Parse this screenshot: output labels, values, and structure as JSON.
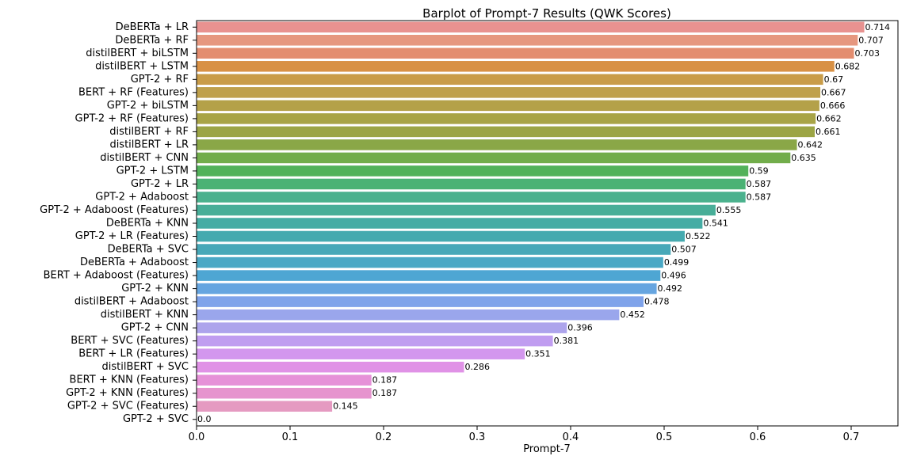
{
  "chart_data": {
    "type": "bar",
    "orientation": "horizontal",
    "title": "Barplot of Prompt-7 Results (QWK Scores)",
    "xlabel": "Prompt-7",
    "ylabel": "",
    "xlim": [
      0.0,
      0.75
    ],
    "xticks": [
      "0.0",
      "0.1",
      "0.2",
      "0.3",
      "0.4",
      "0.5",
      "0.6",
      "0.7"
    ],
    "grid": false,
    "categories": [
      "DeBERTa + LR",
      "DeBERTa + RF",
      "distilBERT + biLSTM",
      "distilBERT + LSTM",
      "GPT-2 + RF",
      "BERT + RF (Features)",
      "GPT-2 + biLSTM",
      "GPT-2 + RF (Features)",
      "distilBERT + RF",
      "distilBERT + LR",
      "distilBERT + CNN",
      "GPT-2 + LSTM",
      "GPT-2 + LR",
      "GPT-2 + Adaboost",
      "GPT-2 + Adaboost (Features)",
      "DeBERTa + KNN",
      "GPT-2 + LR (Features)",
      "DeBERTa + SVC",
      "DeBERTa + Adaboost",
      "BERT + Adaboost (Features)",
      "GPT-2 + KNN",
      "distilBERT + Adaboost",
      "distilBERT + KNN",
      "GPT-2 + CNN",
      "BERT + SVC (Features)",
      "BERT + LR (Features)",
      "distilBERT + SVC",
      "BERT + KNN (Features)",
      "GPT-2 + KNN (Features)",
      "GPT-2 + SVC (Features)",
      "GPT-2 + SVC"
    ],
    "values": [
      0.714,
      0.707,
      0.703,
      0.682,
      0.67,
      0.667,
      0.666,
      0.662,
      0.661,
      0.642,
      0.635,
      0.59,
      0.587,
      0.587,
      0.555,
      0.541,
      0.522,
      0.507,
      0.499,
      0.496,
      0.492,
      0.478,
      0.452,
      0.396,
      0.381,
      0.351,
      0.286,
      0.187,
      0.187,
      0.145,
      0.0
    ],
    "value_labels": [
      "0.714",
      "0.707",
      "0.703",
      "0.682",
      "0.67",
      "0.667",
      "0.666",
      "0.662",
      "0.661",
      "0.642",
      "0.635",
      "0.59",
      "0.587",
      "0.587",
      "0.555",
      "0.541",
      "0.522",
      "0.507",
      "0.499",
      "0.496",
      "0.492",
      "0.478",
      "0.452",
      "0.396",
      "0.381",
      "0.351",
      "0.286",
      "0.187",
      "0.187",
      "0.145",
      "0.0"
    ],
    "colors": [
      "#e89290",
      "#e6977f",
      "#e38d6f",
      "#d89145",
      "#c99c48",
      "#bfa04b",
      "#b4a149",
      "#a8a446",
      "#9ca545",
      "#8aa747",
      "#72ad4b",
      "#52b25a",
      "#4bb274",
      "#4bb18d",
      "#48ae98",
      "#45aca4",
      "#45aaaf",
      "#47a8b8",
      "#4aa8c5",
      "#4ea6d3",
      "#66a5e0",
      "#7fa3ea",
      "#9aa6ec",
      "#ada4ec",
      "#c09df0",
      "#d397ee",
      "#e092e6",
      "#e691d8",
      "#e694ce",
      "#e59ac1",
      "#e49fb3"
    ]
  }
}
